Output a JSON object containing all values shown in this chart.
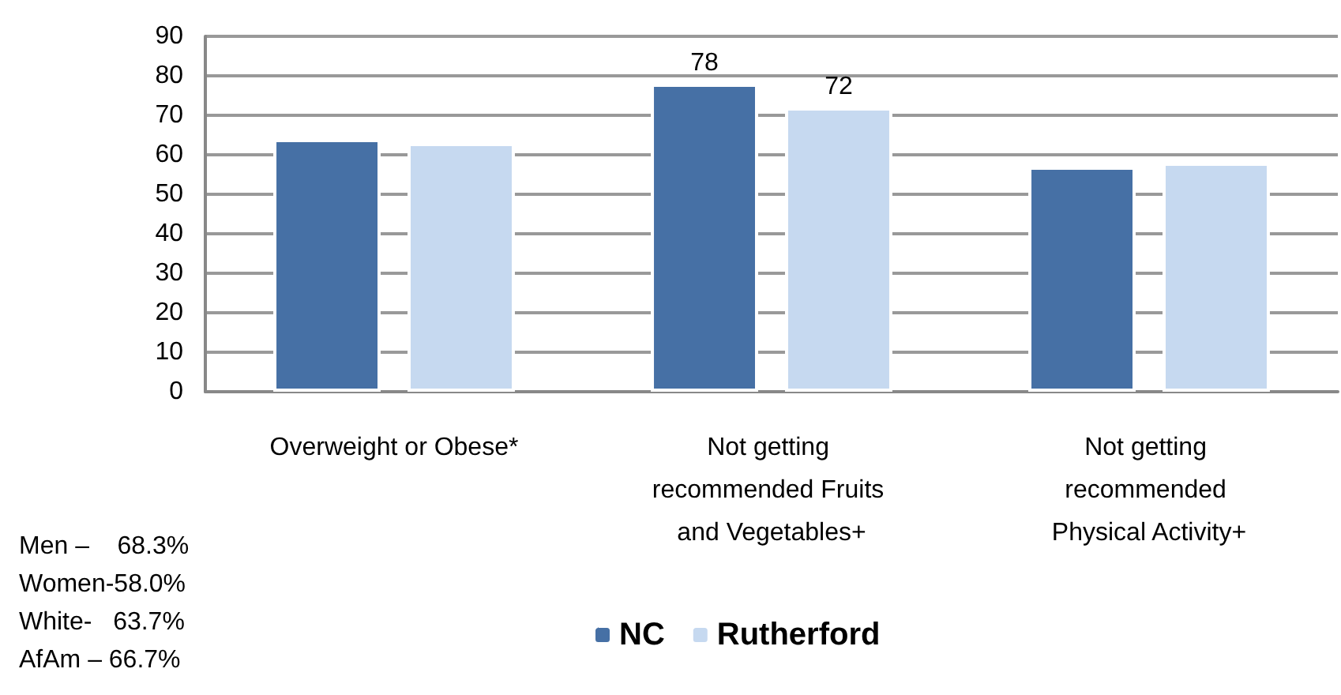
{
  "chart_data": {
    "type": "bar",
    "categories": [
      "Overweight or Obese*",
      "Not getting recommended Fruits and Vegetables+",
      "Not getting recommended Physical Activity+"
    ],
    "series": [
      {
        "name": "NC",
        "color": "#4670a5",
        "values": [
          64,
          78,
          57
        ],
        "value_labels": [
          null,
          "78",
          null
        ]
      },
      {
        "name": "Rutherford",
        "color": "#c6d9f0",
        "values": [
          63,
          72,
          58
        ],
        "value_labels": [
          null,
          "72",
          null
        ]
      }
    ],
    "ylim": [
      0,
      90
    ],
    "yticks": [
      0,
      10,
      20,
      30,
      40,
      50,
      60,
      70,
      80,
      90
    ],
    "grid": "y",
    "legend": "bottom",
    "annotations": [
      "Men –    68.3%",
      "Women-58.0%",
      "White-   63.7%",
      "AfAm – 66.7%"
    ]
  }
}
